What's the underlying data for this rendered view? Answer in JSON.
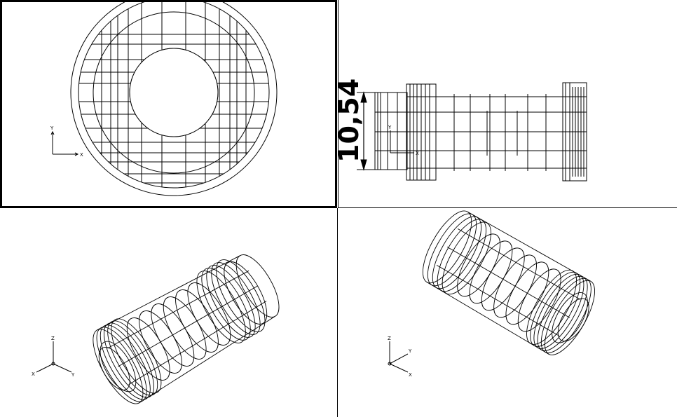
{
  "viewports": {
    "top": {
      "axes": {
        "x": "X",
        "y": "Y"
      }
    },
    "front": {
      "axes": {
        "x": "X",
        "y": "Y"
      },
      "dimension": "10,54"
    },
    "iso_left": {
      "axes": {
        "x": "X",
        "y": "Y",
        "z": "Z"
      }
    },
    "iso_right": {
      "axes": {
        "x": "X",
        "y": "Y",
        "z": "Z"
      }
    }
  },
  "colors": {
    "line": "#000000",
    "background": "#ffffff"
  }
}
